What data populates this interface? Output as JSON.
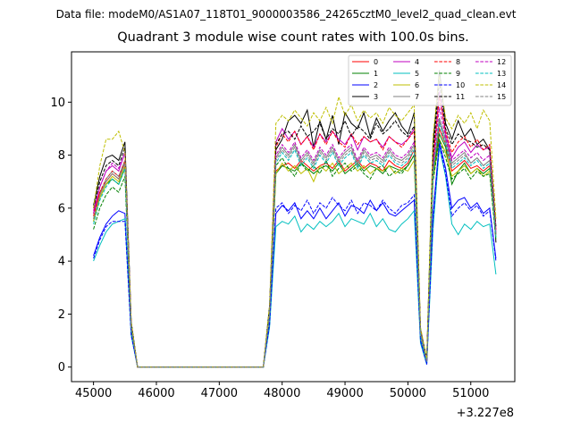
{
  "suptitle": "Data file: modeM0/AS1A07_118T01_9000003586_24265cztM0_level2_quad_clean.evt",
  "chart_data": {
    "type": "line",
    "title": "Quadrant 3 module wise count rates with 100.0s bins.",
    "xlabel": "",
    "ylabel": "",
    "x_offset_label": "+3.227e8",
    "xlim": [
      44650,
      51700
    ],
    "ylim": [
      -0.55,
      11.9
    ],
    "x_ticks": [
      45000,
      46000,
      47000,
      48000,
      49000,
      50000,
      51000
    ],
    "x_tick_labels": [
      "45000",
      "46000",
      "47000",
      "48000",
      "49000",
      "50000",
      "51000"
    ],
    "y_ticks": [
      0,
      2,
      4,
      6,
      8,
      10
    ],
    "y_tick_labels": [
      "0",
      "2",
      "4",
      "6",
      "8",
      "10"
    ],
    "grid": false,
    "legend": {
      "placement": "top-right",
      "columns": 4
    },
    "x": [
      45000,
      45100,
      45200,
      45300,
      45400,
      45500,
      45600,
      45700,
      45800,
      45900,
      46000,
      46100,
      46200,
      46300,
      46400,
      46500,
      46600,
      46700,
      46800,
      46900,
      47000,
      47100,
      47200,
      47300,
      47400,
      47500,
      47600,
      47700,
      47800,
      47900,
      48000,
      48100,
      48200,
      48300,
      48400,
      48500,
      48600,
      48700,
      48800,
      48900,
      49000,
      49100,
      49200,
      49300,
      49400,
      49500,
      49600,
      49700,
      49800,
      49900,
      50000,
      50100,
      50200,
      50300,
      50400,
      50500,
      50600,
      50700,
      50800,
      50900,
      51000,
      51100,
      51200,
      51300,
      51400
    ],
    "series": [
      {
        "name": "0",
        "color": "#ff0000",
        "dash": "solid",
        "values": [
          5.8,
          6.6,
          7.0,
          7.3,
          7.1,
          7.8,
          1.5,
          0,
          0,
          0,
          0,
          0,
          0,
          0,
          0,
          0,
          0,
          0,
          0,
          0,
          0,
          0,
          0,
          0,
          0,
          0,
          0,
          0,
          2.0,
          7.4,
          7.6,
          7.7,
          7.5,
          7.8,
          7.6,
          7.4,
          7.6,
          7.7,
          7.5,
          7.8,
          7.4,
          7.6,
          7.8,
          7.5,
          7.7,
          7.6,
          7.4,
          7.8,
          7.6,
          7.5,
          7.7,
          8.2,
          1.2,
          0.2,
          7.3,
          9.0,
          8.4,
          7.4,
          7.6,
          7.8,
          7.5,
          7.6,
          7.4,
          7.6,
          5.2
        ]
      },
      {
        "name": "1",
        "color": "#008000",
        "dash": "solid",
        "values": [
          5.5,
          6.4,
          6.9,
          7.1,
          6.9,
          7.5,
          1.5,
          0,
          0,
          0,
          0,
          0,
          0,
          0,
          0,
          0,
          0,
          0,
          0,
          0,
          0,
          0,
          0,
          0,
          0,
          0,
          0,
          0,
          2.0,
          7.3,
          7.6,
          7.5,
          7.4,
          7.7,
          7.5,
          7.3,
          7.5,
          7.6,
          7.4,
          7.7,
          7.3,
          7.5,
          7.7,
          7.4,
          7.6,
          7.5,
          7.3,
          7.6,
          7.5,
          7.4,
          7.6,
          8.0,
          1.2,
          0.2,
          7.2,
          8.8,
          8.3,
          6.9,
          7.4,
          7.7,
          7.3,
          7.5,
          7.3,
          7.5,
          5.0
        ]
      },
      {
        "name": "2",
        "color": "#0000ff",
        "dash": "solid",
        "values": [
          4.2,
          4.9,
          5.4,
          5.7,
          5.9,
          5.8,
          1.3,
          0,
          0,
          0,
          0,
          0,
          0,
          0,
          0,
          0,
          0,
          0,
          0,
          0,
          0,
          0,
          0,
          0,
          0,
          0,
          0,
          0,
          1.6,
          5.8,
          6.1,
          5.9,
          6.2,
          5.6,
          5.9,
          5.6,
          6.0,
          5.6,
          5.9,
          6.2,
          5.7,
          6.1,
          6.0,
          5.8,
          6.3,
          5.9,
          6.2,
          5.8,
          5.7,
          5.9,
          6.1,
          6.3,
          1.0,
          0.1,
          5.8,
          8.5,
          7.5,
          6.0,
          6.3,
          6.4,
          6.0,
          6.2,
          5.8,
          6.0,
          4.1
        ]
      },
      {
        "name": "3",
        "color": "#000000",
        "dash": "solid",
        "values": [
          6.1,
          7.2,
          7.9,
          8.0,
          7.8,
          8.5,
          1.7,
          0,
          0,
          0,
          0,
          0,
          0,
          0,
          0,
          0,
          0,
          0,
          0,
          0,
          0,
          0,
          0,
          0,
          0,
          0,
          0,
          0,
          2.3,
          8.2,
          8.6,
          9.3,
          9.5,
          9.2,
          9.7,
          8.3,
          9.3,
          8.6,
          9.5,
          8.4,
          9.6,
          9.2,
          9.0,
          9.6,
          8.7,
          9.4,
          8.9,
          9.3,
          9.6,
          9.1,
          8.8,
          9.6,
          1.4,
          0.3,
          8.4,
          11.2,
          9.2,
          8.6,
          9.3,
          8.7,
          9.0,
          8.4,
          8.6,
          8.2,
          4.7
        ]
      },
      {
        "name": "4",
        "color": "#bf00bf",
        "dash": "solid",
        "values": [
          5.9,
          6.8,
          7.4,
          7.6,
          7.4,
          8.1,
          1.6,
          0,
          0,
          0,
          0,
          0,
          0,
          0,
          0,
          0,
          0,
          0,
          0,
          0,
          0,
          0,
          0,
          0,
          0,
          0,
          0,
          0,
          2.1,
          8.5,
          9.0,
          8.6,
          8.9,
          8.4,
          8.7,
          8.3,
          8.8,
          8.5,
          8.9,
          8.6,
          8.4,
          8.8,
          8.2,
          8.7,
          8.5,
          8.6,
          8.3,
          8.7,
          8.5,
          8.4,
          8.6,
          9.0,
          1.3,
          0.2,
          7.7,
          10.4,
          8.8,
          7.9,
          8.3,
          8.5,
          8.1,
          8.4,
          8.2,
          8.3,
          5.1
        ]
      },
      {
        "name": "5",
        "color": "#00bfbf",
        "dash": "solid",
        "values": [
          4.0,
          4.6,
          5.1,
          5.4,
          5.5,
          5.6,
          1.2,
          0,
          0,
          0,
          0,
          0,
          0,
          0,
          0,
          0,
          0,
          0,
          0,
          0,
          0,
          0,
          0,
          0,
          0,
          0,
          0,
          0,
          1.5,
          5.3,
          5.5,
          5.4,
          5.7,
          5.1,
          5.4,
          5.2,
          5.5,
          5.3,
          5.5,
          5.8,
          5.3,
          5.6,
          5.5,
          5.4,
          5.8,
          5.3,
          5.6,
          5.2,
          5.1,
          5.4,
          5.6,
          5.9,
          0.9,
          0.1,
          5.2,
          8.3,
          7.2,
          5.4,
          5.0,
          5.4,
          5.2,
          5.5,
          5.3,
          5.4,
          3.5
        ]
      },
      {
        "name": "6",
        "color": "#bfbf00",
        "dash": "solid",
        "values": [
          5.5,
          6.4,
          6.9,
          7.2,
          7.0,
          7.6,
          1.5,
          0,
          0,
          0,
          0,
          0,
          0,
          0,
          0,
          0,
          0,
          0,
          0,
          0,
          0,
          0,
          0,
          0,
          0,
          0,
          0,
          0,
          2.0,
          7.3,
          7.7,
          7.4,
          7.6,
          7.3,
          7.5,
          7.0,
          7.6,
          7.4,
          7.7,
          7.3,
          7.5,
          7.7,
          7.4,
          7.6,
          7.3,
          7.5,
          7.4,
          7.6,
          7.3,
          7.5,
          7.4,
          7.8,
          1.2,
          0.2,
          7.1,
          8.6,
          8.1,
          7.2,
          7.4,
          7.6,
          7.3,
          7.5,
          7.2,
          7.4,
          4.9
        ]
      },
      {
        "name": "7",
        "color": "#808080",
        "dash": "solid",
        "values": [
          5.6,
          6.5,
          7.0,
          7.3,
          7.1,
          7.7,
          1.5,
          0,
          0,
          0,
          0,
          0,
          0,
          0,
          0,
          0,
          0,
          0,
          0,
          0,
          0,
          0,
          0,
          0,
          0,
          0,
          0,
          0,
          2.0,
          7.9,
          8.3,
          8.0,
          8.4,
          7.8,
          8.1,
          7.7,
          8.2,
          7.9,
          8.3,
          7.8,
          8.1,
          8.3,
          7.7,
          8.2,
          7.9,
          8.0,
          7.8,
          8.2,
          7.9,
          7.8,
          8.0,
          8.4,
          1.3,
          0.2,
          7.4,
          9.4,
          8.6,
          7.7,
          7.9,
          8.1,
          7.7,
          7.9,
          7.6,
          7.8,
          5.0
        ]
      },
      {
        "name": "8",
        "color": "#ff0000",
        "dash": "dashed",
        "values": [
          5.7,
          6.6,
          7.1,
          7.4,
          7.2,
          7.8,
          1.5,
          0,
          0,
          0,
          0,
          0,
          0,
          0,
          0,
          0,
          0,
          0,
          0,
          0,
          0,
          0,
          0,
          0,
          0,
          0,
          0,
          0,
          2.0,
          8.3,
          8.8,
          8.5,
          8.9,
          8.4,
          8.7,
          8.2,
          8.8,
          8.4,
          8.9,
          8.5,
          8.3,
          8.8,
          8.4,
          8.7,
          8.5,
          8.6,
          8.2,
          8.7,
          8.5,
          8.3,
          8.6,
          8.9,
          1.3,
          0.2,
          7.8,
          10.2,
          8.9,
          8.1,
          8.5,
          8.7,
          8.3,
          8.6,
          8.2,
          8.4,
          5.2
        ]
      },
      {
        "name": "9",
        "color": "#008000",
        "dash": "dashed",
        "values": [
          5.2,
          6.0,
          6.5,
          6.8,
          6.6,
          7.2,
          1.4,
          0,
          0,
          0,
          0,
          0,
          0,
          0,
          0,
          0,
          0,
          0,
          0,
          0,
          0,
          0,
          0,
          0,
          0,
          0,
          0,
          0,
          1.9,
          7.6,
          7.9,
          7.5,
          7.2,
          7.7,
          7.4,
          7.6,
          7.3,
          7.8,
          7.2,
          7.5,
          7.7,
          7.4,
          7.6,
          7.3,
          7.1,
          7.5,
          7.6,
          7.2,
          7.4,
          7.3,
          7.6,
          8.0,
          1.2,
          0.2,
          7.0,
          8.6,
          7.9,
          7.1,
          7.3,
          7.5,
          7.1,
          7.4,
          7.2,
          7.3,
          4.8
        ]
      },
      {
        "name": "10",
        "color": "#0000ff",
        "dash": "dashed",
        "values": [
          4.1,
          4.8,
          5.3,
          5.5,
          5.5,
          5.5,
          1.2,
          0,
          0,
          0,
          0,
          0,
          0,
          0,
          0,
          0,
          0,
          0,
          0,
          0,
          0,
          0,
          0,
          0,
          0,
          0,
          0,
          0,
          1.6,
          6.0,
          6.2,
          5.8,
          6.1,
          5.9,
          6.3,
          5.8,
          6.2,
          6.0,
          6.4,
          6.1,
          5.9,
          6.3,
          5.8,
          6.2,
          6.1,
          5.9,
          6.3,
          6.0,
          5.8,
          6.1,
          6.2,
          6.5,
          1.0,
          0.1,
          5.6,
          8.4,
          7.3,
          5.7,
          6.0,
          6.2,
          5.9,
          6.1,
          5.7,
          5.9,
          4.0
        ]
      },
      {
        "name": "11",
        "color": "#000000",
        "dash": "dashed",
        "values": [
          6.0,
          7.0,
          7.6,
          7.8,
          7.6,
          8.3,
          1.7,
          0,
          0,
          0,
          0,
          0,
          0,
          0,
          0,
          0,
          0,
          0,
          0,
          0,
          0,
          0,
          0,
          0,
          0,
          0,
          0,
          0,
          2.2,
          8.4,
          8.8,
          8.9,
          8.6,
          9.1,
          8.7,
          8.9,
          9.2,
          8.6,
          9.0,
          8.8,
          9.3,
          8.7,
          9.1,
          8.9,
          8.6,
          9.2,
          8.8,
          9.0,
          9.3,
          8.9,
          8.7,
          9.1,
          1.4,
          0.3,
          8.1,
          10.8,
          9.0,
          8.4,
          8.8,
          8.6,
          8.5,
          8.3,
          8.4,
          8.2,
          5.3
        ]
      },
      {
        "name": "12",
        "color": "#bf00bf",
        "dash": "dashed",
        "values": [
          5.8,
          6.8,
          7.4,
          7.7,
          7.5,
          8.1,
          1.6,
          0,
          0,
          0,
          0,
          0,
          0,
          0,
          0,
          0,
          0,
          0,
          0,
          0,
          0,
          0,
          0,
          0,
          0,
          0,
          0,
          0,
          2.1,
          8.0,
          8.4,
          8.1,
          8.5,
          7.9,
          8.2,
          7.8,
          8.3,
          8.0,
          8.4,
          7.9,
          8.2,
          8.4,
          7.8,
          8.3,
          8.0,
          8.1,
          7.9,
          8.3,
          8.0,
          7.9,
          8.1,
          8.5,
          1.3,
          0.2,
          7.6,
          9.8,
          8.7,
          7.8,
          8.0,
          8.2,
          7.9,
          8.1,
          7.8,
          8.0,
          5.1
        ]
      },
      {
        "name": "13",
        "color": "#00bfbf",
        "dash": "dashed",
        "values": [
          5.4,
          6.3,
          6.8,
          7.1,
          6.9,
          7.5,
          1.5,
          0,
          0,
          0,
          0,
          0,
          0,
          0,
          0,
          0,
          0,
          0,
          0,
          0,
          0,
          0,
          0,
          0,
          0,
          0,
          0,
          0,
          2.0,
          7.7,
          8.1,
          7.8,
          8.2,
          7.6,
          7.9,
          7.5,
          8.0,
          7.7,
          8.1,
          7.6,
          7.9,
          8.1,
          7.5,
          8.0,
          7.7,
          7.8,
          7.6,
          8.0,
          7.7,
          7.6,
          7.8,
          8.2,
          1.2,
          0.2,
          7.3,
          9.2,
          8.4,
          7.5,
          7.7,
          7.9,
          7.6,
          7.8,
          7.5,
          7.7,
          4.9
        ]
      },
      {
        "name": "14",
        "color": "#bfbf00",
        "dash": "dashed",
        "values": [
          6.0,
          7.6,
          8.6,
          8.6,
          8.9,
          8.1,
          1.7,
          0,
          0,
          0,
          0,
          0,
          0,
          0,
          0,
          0,
          0,
          0,
          0,
          0,
          0,
          0,
          0,
          0,
          0,
          0,
          0,
          0,
          2.3,
          9.2,
          9.5,
          9.3,
          9.7,
          9.4,
          9.1,
          9.6,
          9.3,
          9.8,
          9.2,
          10.2,
          9.5,
          9.9,
          9.3,
          9.7,
          9.4,
          9.6,
          9.2,
          9.8,
          9.5,
          9.3,
          9.6,
          9.9,
          1.5,
          0.3,
          8.7,
          11.0,
          9.4,
          9.0,
          9.5,
          9.2,
          9.6,
          9.0,
          9.7,
          9.3,
          5.6
        ]
      },
      {
        "name": "15",
        "color": "#808080",
        "dash": "dashed",
        "values": [
          5.6,
          6.5,
          7.1,
          7.4,
          7.2,
          7.8,
          1.5,
          0,
          0,
          0,
          0,
          0,
          0,
          0,
          0,
          0,
          0,
          0,
          0,
          0,
          0,
          0,
          0,
          0,
          0,
          0,
          0,
          0,
          2.0,
          7.8,
          8.2,
          7.9,
          8.3,
          7.7,
          8.0,
          7.6,
          8.1,
          7.8,
          8.2,
          7.7,
          8.0,
          8.2,
          7.6,
          8.1,
          7.8,
          7.9,
          7.7,
          8.1,
          7.8,
          7.7,
          7.9,
          8.3,
          1.3,
          0.2,
          7.4,
          9.3,
          8.5,
          7.6,
          7.8,
          8.0,
          7.7,
          7.9,
          7.6,
          7.8,
          5.0
        ]
      }
    ]
  }
}
